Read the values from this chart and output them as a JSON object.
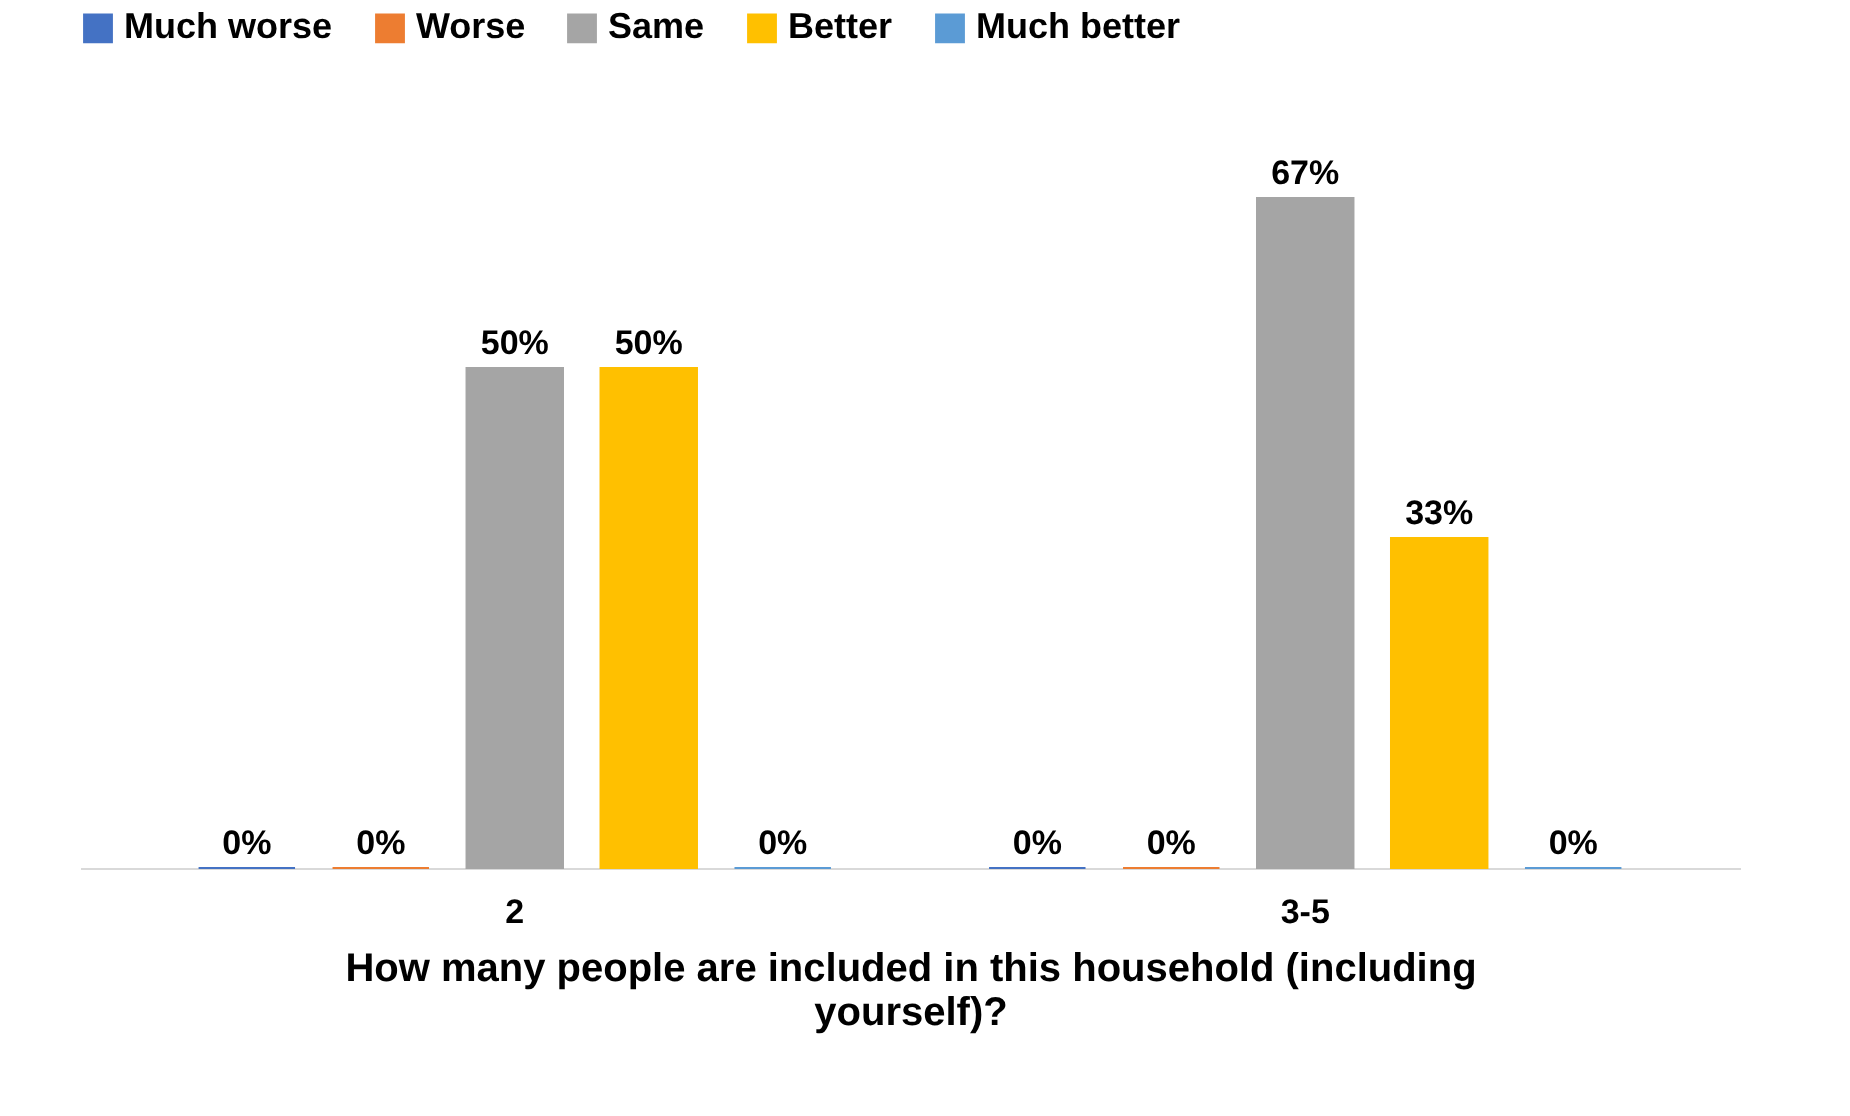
{
  "chart_data": {
    "type": "bar",
    "xlabel": "How many people are included in this household (including yourself)?",
    "categories": [
      "2",
      "3-5"
    ],
    "legend": "top",
    "series": [
      {
        "name": "Much worse",
        "color": "#4472c4",
        "values": [
          0,
          0
        ],
        "value_labels": [
          "0%",
          "0%"
        ]
      },
      {
        "name": "Worse",
        "color": "#ed7d31",
        "values": [
          0,
          0
        ],
        "value_labels": [
          "0%",
          "0%"
        ]
      },
      {
        "name": "Same",
        "color": "#a5a5a5",
        "values": [
          50,
          67
        ],
        "value_labels": [
          "50%",
          "67%"
        ]
      },
      {
        "name": "Better",
        "color": "#ffc000",
        "values": [
          50,
          33
        ],
        "value_labels": [
          "50%",
          "33%"
        ]
      },
      {
        "name": "Much better",
        "color": "#5b9bd5",
        "values": [
          0,
          0
        ],
        "value_labels": [
          "0%",
          "0%"
        ]
      }
    ]
  }
}
